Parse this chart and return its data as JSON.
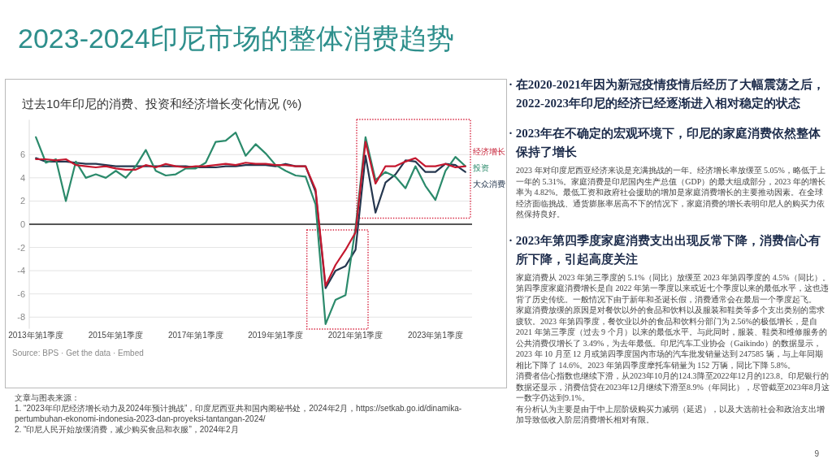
{
  "chart_data": {
    "type": "line",
    "title": "2023-2024印尼市场的整体消费趋势",
    "subtitle": "过去10年印尼的消费、投资和经济增长变化情况 (%)",
    "x": [
      "2013-01",
      "2013-04",
      "2013-07",
      "2013-10",
      "2014-01",
      "2014-04",
      "2014-07",
      "2014-10",
      "2015-01",
      "2015-04",
      "2015-07",
      "2015-10",
      "2016-01",
      "2016-04",
      "2016-07",
      "2016-10",
      "2017-01",
      "2017-04",
      "2017-07",
      "2017-10",
      "2018-01",
      "2018-04",
      "2018-07",
      "2018-10",
      "2019-01",
      "2019-04",
      "2019-07",
      "2019-10",
      "2020-01",
      "2020-04",
      "2020-07",
      "2020-10",
      "2021-01",
      "2021-04",
      "2021-07",
      "2021-10",
      "2022-01",
      "2022-04",
      "2022-07",
      "2022-10",
      "2023-01",
      "2023-04",
      "2023-07",
      "2023-10"
    ],
    "xlim": [
      "2012-11",
      "2023-12"
    ],
    "xticks": [
      {
        "value": "2013-01",
        "label": "2013年第1季度"
      },
      {
        "value": "2015-01",
        "label": "2015年第1季度"
      },
      {
        "value": "2017-01",
        "label": "2017年第1季度"
      },
      {
        "value": "2019-01",
        "label": "2019年第1季度"
      },
      {
        "value": "2021-01",
        "label": "2021年第1季度"
      },
      {
        "value": "2023-01",
        "label": "2023年第1季度"
      }
    ],
    "ylim": [
      -9,
      9
    ],
    "yticks": [
      -8,
      -6,
      -4,
      -2,
      0,
      2,
      4,
      6
    ],
    "grid": "y",
    "ref_lines": [
      {
        "axis": "y",
        "value": 0,
        "color": "#222222"
      }
    ],
    "series": [
      {
        "name": "经济增长",
        "color": "#c4182f",
        "values": [
          5.6,
          5.6,
          5.5,
          5.6,
          5.1,
          5.0,
          4.9,
          5.0,
          4.8,
          4.7,
          4.7,
          5.1,
          4.9,
          5.2,
          5.0,
          4.9,
          5.0,
          5.0,
          5.1,
          5.2,
          5.1,
          5.3,
          5.2,
          5.2,
          5.1,
          5.1,
          5.0,
          5.0,
          3.0,
          -5.3,
          -3.5,
          -2.2,
          -0.7,
          7.1,
          3.5,
          5.0,
          5.0,
          5.4,
          5.7,
          5.0,
          5.0,
          5.2,
          4.9,
          5.0
        ]
      },
      {
        "name": "投资",
        "color": "#2b8a6b",
        "values": [
          7.5,
          5.3,
          5.6,
          2.0,
          5.4,
          4.0,
          4.3,
          4.0,
          4.6,
          4.0,
          5.0,
          6.4,
          4.6,
          4.2,
          4.3,
          4.8,
          4.8,
          5.3,
          7.1,
          7.2,
          7.9,
          5.9,
          6.9,
          6.1,
          5.1,
          4.6,
          4.2,
          4.1,
          1.7,
          -8.6,
          -6.5,
          -6.1,
          -0.3,
          7.5,
          3.8,
          4.5,
          4.1,
          3.1,
          5.0,
          3.3,
          2.1,
          4.6,
          5.8,
          5.0
        ]
      },
      {
        "name": "大众消费",
        "color": "#25374f",
        "values": [
          5.7,
          5.4,
          5.4,
          5.4,
          5.3,
          5.2,
          5.2,
          5.1,
          5.0,
          5.0,
          5.0,
          5.0,
          5.0,
          5.0,
          5.0,
          5.0,
          4.9,
          4.9,
          4.9,
          5.0,
          5.0,
          5.1,
          5.1,
          5.1,
          5.0,
          5.2,
          5.0,
          5.0,
          2.8,
          -5.5,
          -4.0,
          -3.6,
          -2.2,
          5.9,
          1.0,
          3.6,
          4.3,
          5.5,
          5.4,
          4.5,
          4.5,
          5.2,
          5.1,
          4.5
        ]
      }
    ],
    "annotations": [
      "Source: BPS · Get the data · Embed",
      "· 在2020-2021年因为新冠疫情疫情后经历了大幅震荡之后，2022-2023年印尼的经济已经逐渐进入相对稳定的状态",
      "· 2023年在不确定的宏观环境下，印尼的家庭消费依然整体保持了增长",
      "2023 年对印度尼西亚经济来说是充满挑战的一年。经济增长率放缓至 5.05%，略低于上一年的 5.31%。家庭消费是印尼国内生产总值（GDP）的最大组成部分，2023 年的增长率为 4.82%。最低工资和政府社会援助的增加是家庭消费增长的主要推动因素。在全球经济面临挑战、通货膨胀率居高不下的情况下，家庭消费的增长表明印尼人的购买力依然保持良好。",
      "· 2023年第四季度家庭消费支出出现反常下降，消费信心有所下降，引起高度关注",
      "家庭消费从 2023 年第三季度的 5.1%（同比）放缓至 2023 年第四季度的 4.5%（同比）。第四季度家庭消费增长是自 2022 年第一季度以来或近七个季度以来的最低水平，这也违背了历史传统。一般情况下由于新年和圣诞长假，消费通常会在最后一个季度起飞。",
      "家庭消费放缓的原因是对餐饮以外的食品和饮料以及服装和鞋类等多个支出类别的需求疲软。2023 年第四季度，餐饮业以外的食品和饮料分部门为 2.56%的极低增长，是自 2021 年第三季度（过去 9 个月）以来的最低水平。与此同时，服装、鞋类和维修服务的公共消费仅增长了 3.49%，为去年最低。印尼汽车工业协会（Gaikindo）的数据显示，2023 年 10 月至 12 月或第四季度国内市场的汽车批发销量达到 247585 辆，与上年同期相比下降了 14.6%。2023 年第四季度摩托车销量为 152 万辆，同比下降 5.8%。",
      "消费者信心指数也继续下滑，从2023年10月的124.3降至2022年12月的123.8。印尼银行的数据还显示，消费信贷在2023年12月继续下滑至8.9%（年同比），尽管截至2023年8月这一数字仍达到9.1%。",
      "有分析认为主要是由于中上层阶级购买力减弱（延迟），以及大选前社会和政治支出增加导致低收入阶层消费增长相对有限。",
      "文章与图表来源：",
      "1. “2023年印尼经济增长动力及2024年预计挑战”，印度尼西亚共和国内阁秘书处，2024年2月，https://setkab.go.id/dinamika-pertumbuhan-ekonomi-indonesia-2023-dan-proyeksi-tantangan-2024/",
      "2. “印尼人民开始放缓消费，减少购买食品和衣服”，2024年2月",
      "9"
    ]
  }
}
